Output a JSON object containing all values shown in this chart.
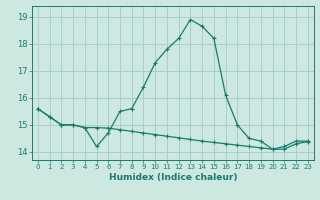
{
  "title": "",
  "xlabel": "Humidex (Indice chaleur)",
  "background_color": "#cce8e0",
  "line_color": "#1a7a6e",
  "grid_color": "#aacec6",
  "x_values": [
    0,
    1,
    2,
    3,
    4,
    5,
    6,
    7,
    8,
    9,
    10,
    11,
    12,
    13,
    14,
    15,
    16,
    17,
    18,
    19,
    20,
    21,
    22,
    23
  ],
  "y_line1": [
    15.6,
    15.3,
    15.0,
    15.0,
    14.9,
    14.2,
    14.7,
    15.5,
    15.6,
    16.4,
    17.3,
    17.8,
    18.2,
    18.9,
    18.65,
    18.2,
    16.1,
    15.0,
    14.5,
    14.4,
    14.1,
    14.2,
    14.4,
    14.4
  ],
  "y_line2": [
    15.6,
    15.3,
    15.0,
    15.0,
    14.9,
    14.9,
    14.88,
    14.82,
    14.76,
    14.7,
    14.64,
    14.58,
    14.52,
    14.46,
    14.4,
    14.35,
    14.3,
    14.25,
    14.2,
    14.15,
    14.1,
    14.1,
    14.3,
    14.38
  ],
  "ylim": [
    13.7,
    19.4
  ],
  "xlim": [
    -0.5,
    23.5
  ],
  "yticks": [
    14,
    15,
    16,
    17,
    18,
    19
  ],
  "xticks": [
    0,
    1,
    2,
    3,
    4,
    5,
    6,
    7,
    8,
    9,
    10,
    11,
    12,
    13,
    14,
    15,
    16,
    17,
    18,
    19,
    20,
    21,
    22,
    23
  ]
}
